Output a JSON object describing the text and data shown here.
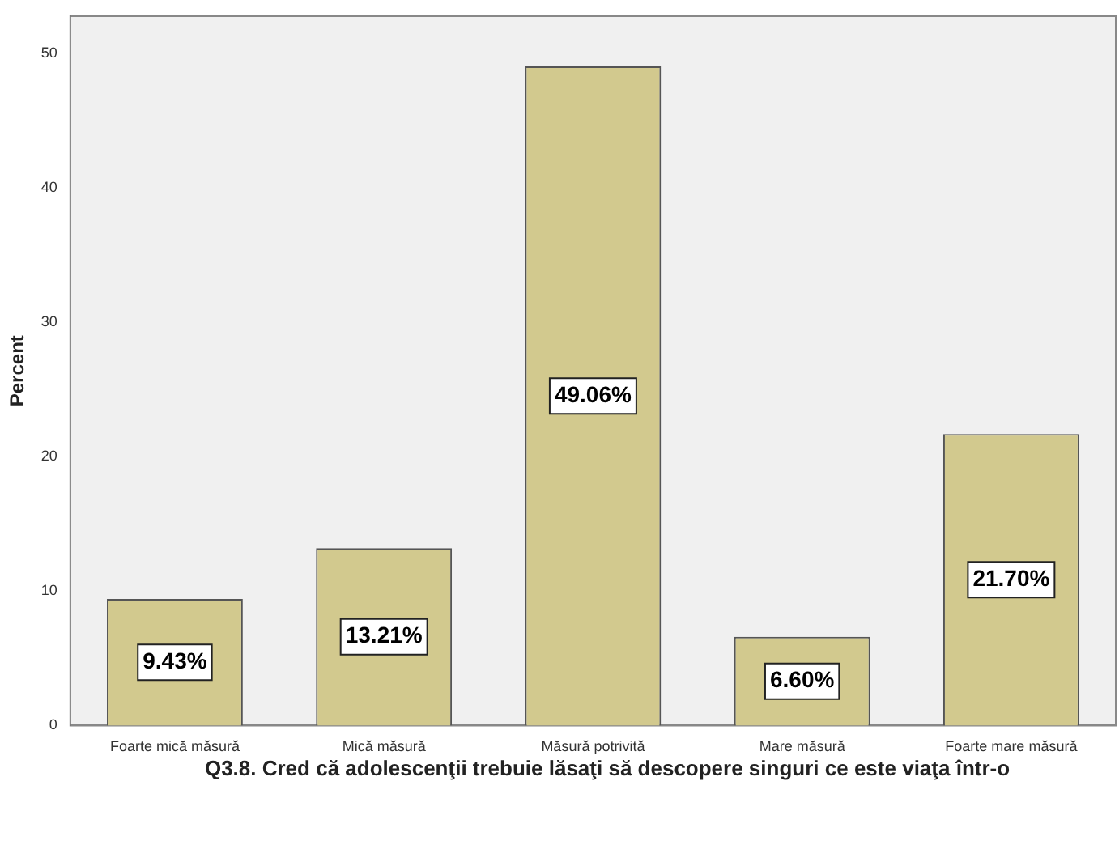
{
  "chart_data": {
    "type": "bar",
    "categories": [
      "Foarte mică măsură",
      "Mică măsură",
      "Măsură potrivită",
      "Mare măsură",
      "Foarte mare măsură"
    ],
    "values": [
      9.43,
      13.21,
      49.06,
      6.6,
      21.7
    ],
    "value_labels": [
      "9.43%",
      "13.21%",
      "49.06%",
      "6.60%",
      "21.70%"
    ],
    "color": "#d2c98e",
    "xlabel": "Q3.8. Cred că adolescenţii trebuie lăsaţi să descopere singuri ce este viaţa într-o",
    "ylabel": "Percent",
    "ylim": [
      0,
      52.8
    ],
    "yticks": [
      0,
      10,
      20,
      30,
      40,
      50
    ],
    "grid": false,
    "legend": false
  }
}
